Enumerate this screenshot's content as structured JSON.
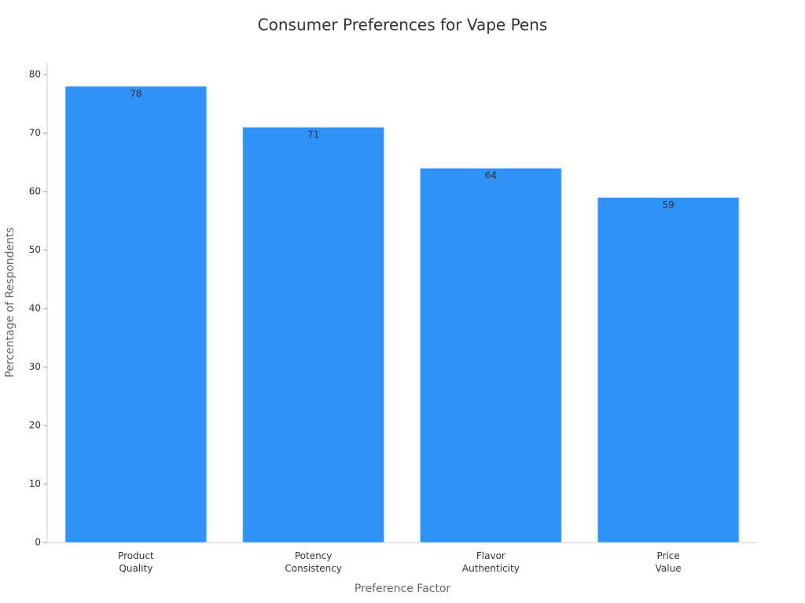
{
  "chart_data": {
    "type": "bar",
    "title": "Consumer Preferences for Vape Pens",
    "x_label": "Preference Factor",
    "y_label": "Percentage of Respondents",
    "categories": [
      "Product\nQuality",
      "Potency\nConsistency",
      "Flavor\nAuthenticity",
      "Price\nValue"
    ],
    "values": [
      78,
      71,
      64,
      59
    ],
    "color": "#3091f7",
    "ylim": [
      0,
      82
    ],
    "yticks": [
      0,
      10,
      20,
      30,
      40,
      50,
      60,
      70,
      80
    ],
    "grid": false
  }
}
